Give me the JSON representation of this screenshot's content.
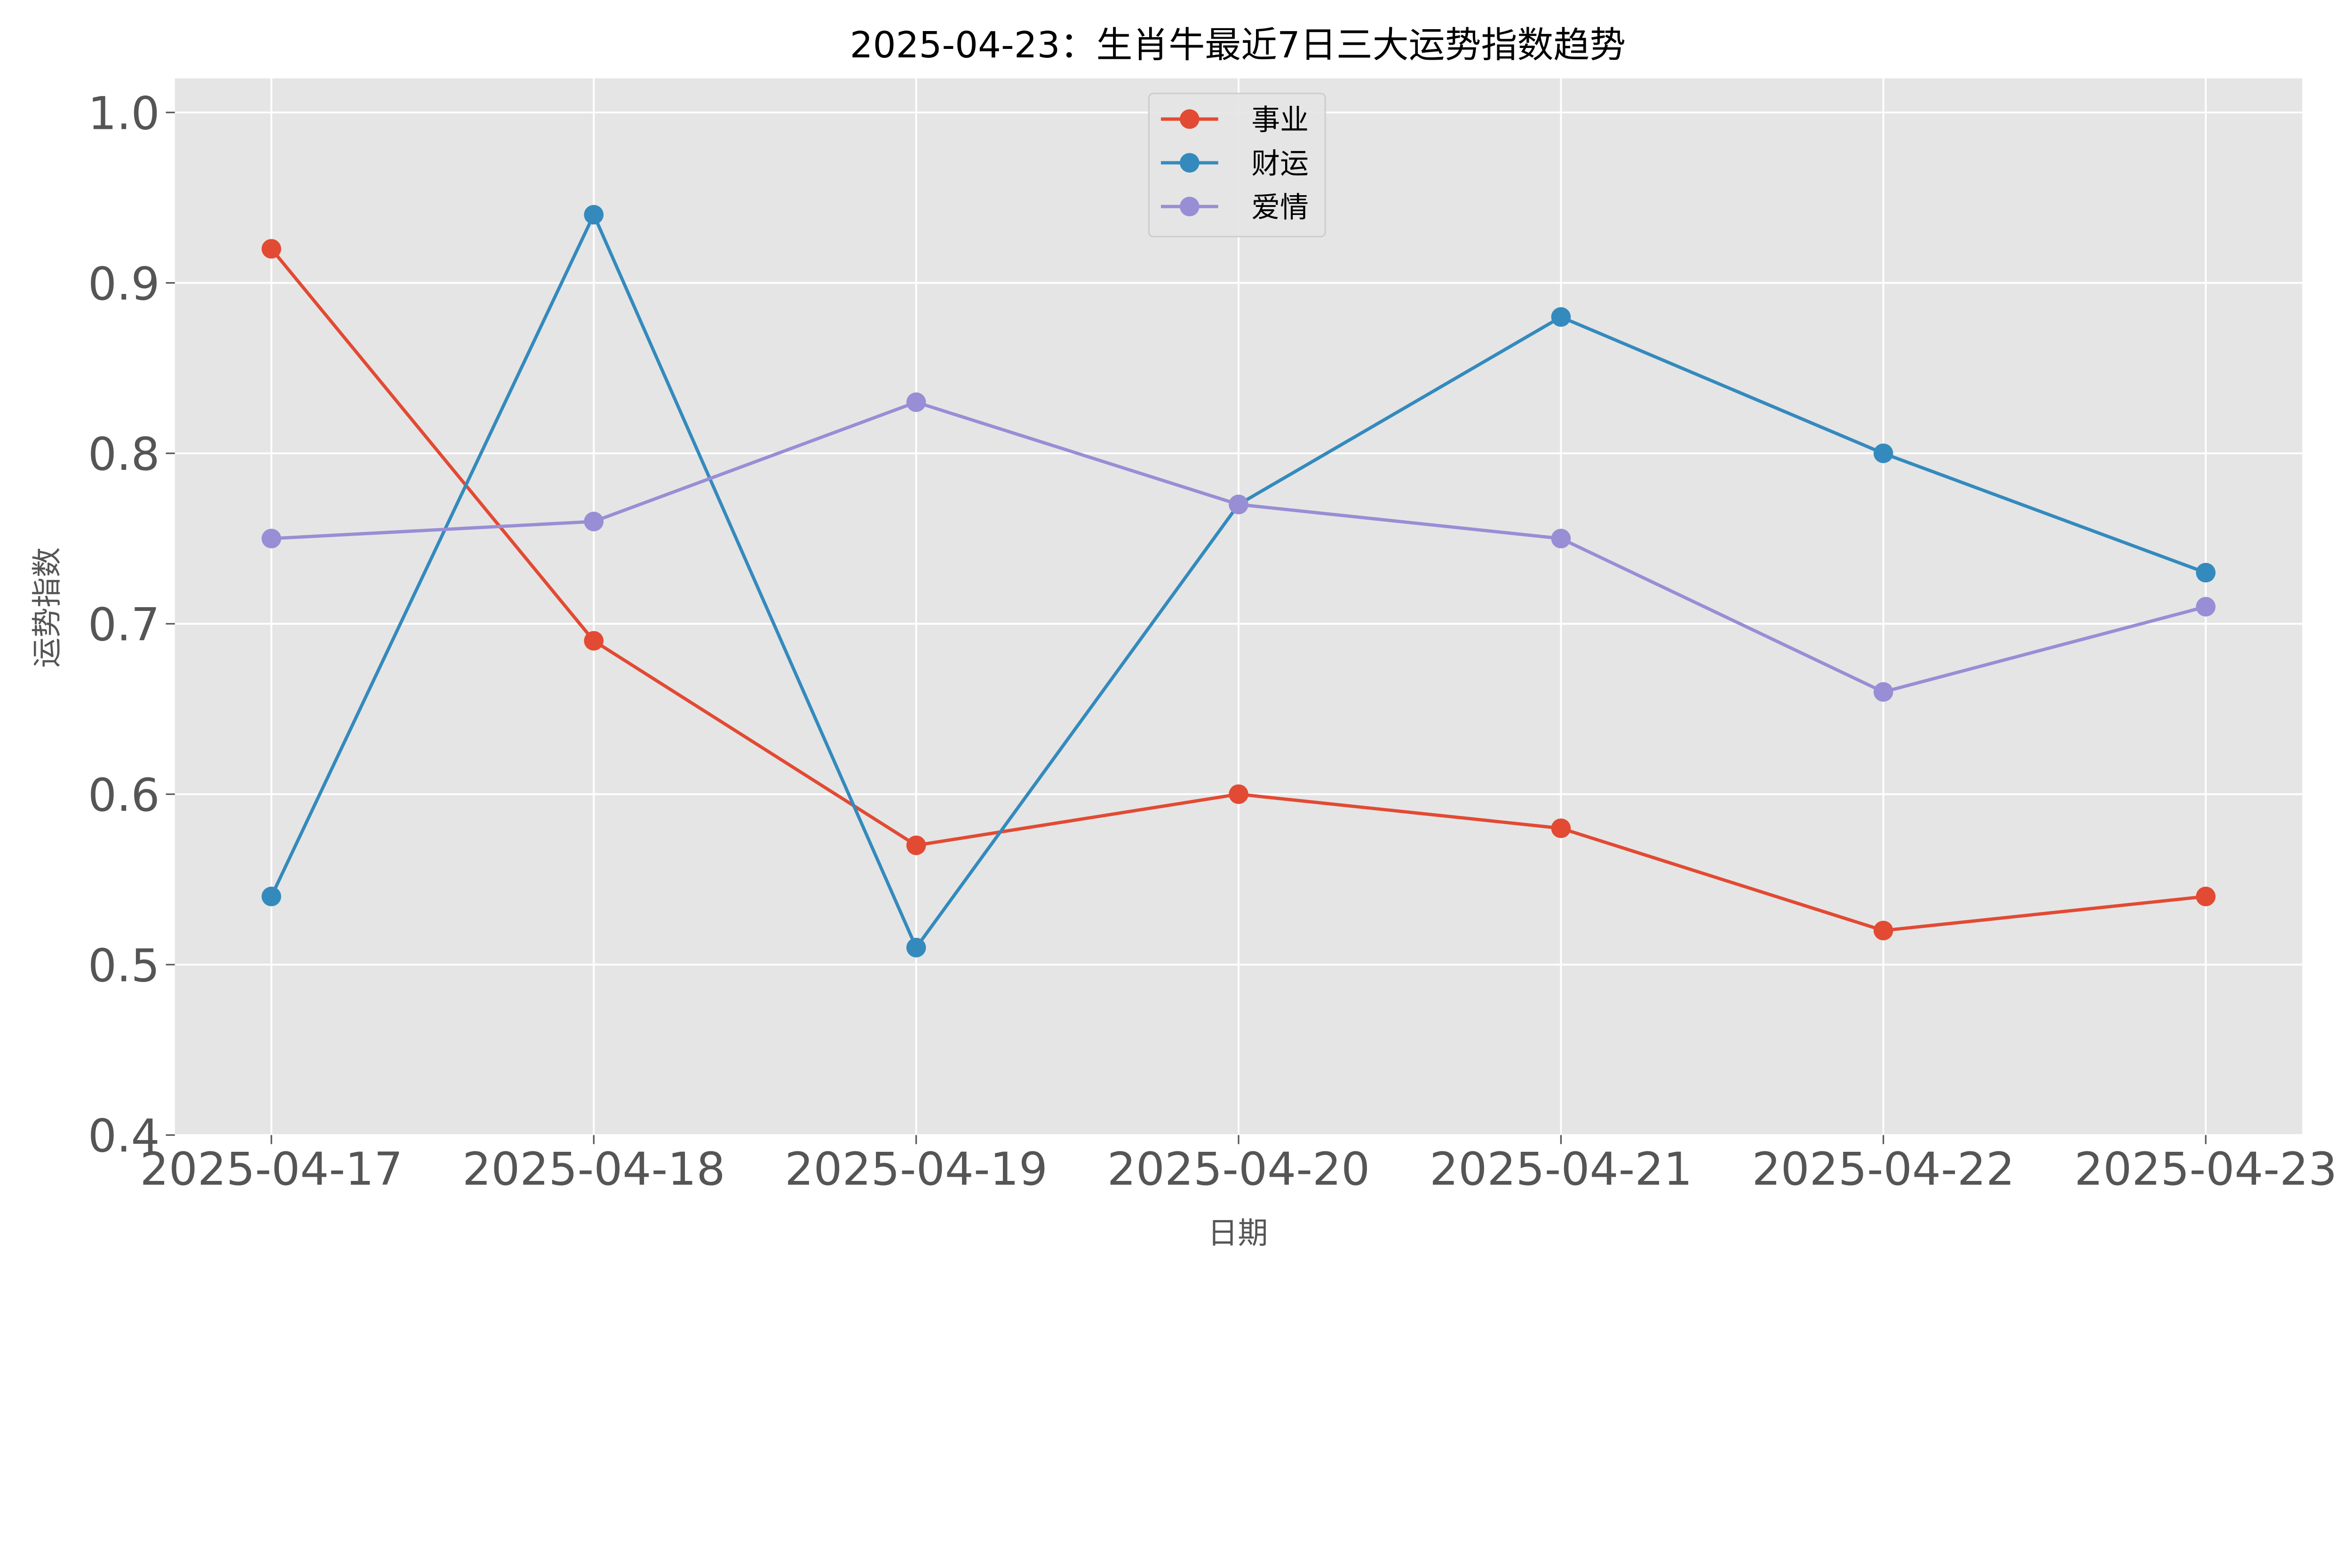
{
  "chart_data": {
    "type": "line",
    "title": "2025-04-23：生肖牛最近7日三大运势指数趋势",
    "xlabel": "日期",
    "ylabel": "运势指数",
    "categories": [
      "2025-04-17",
      "2025-04-18",
      "2025-04-19",
      "2025-04-20",
      "2025-04-21",
      "2025-04-22",
      "2025-04-23"
    ],
    "ylim": [
      0.4,
      1.02
    ],
    "yticks": [
      "0.4",
      "0.5",
      "0.6",
      "0.7",
      "0.8",
      "0.9",
      "1.0"
    ],
    "grid": true,
    "legend": "top-center",
    "series": [
      {
        "name": "事业",
        "color": "#E24A33",
        "values": [
          0.92,
          0.69,
          0.57,
          0.6,
          0.58,
          0.52,
          0.54
        ]
      },
      {
        "name": "财运",
        "color": "#348ABD",
        "values": [
          0.54,
          0.94,
          0.51,
          0.77,
          0.88,
          0.8,
          0.73
        ]
      },
      {
        "name": "爱情",
        "color": "#988ED5",
        "values": [
          0.75,
          0.76,
          0.83,
          0.77,
          0.75,
          0.66,
          0.71
        ]
      }
    ],
    "background": "#E5E5E5"
  }
}
